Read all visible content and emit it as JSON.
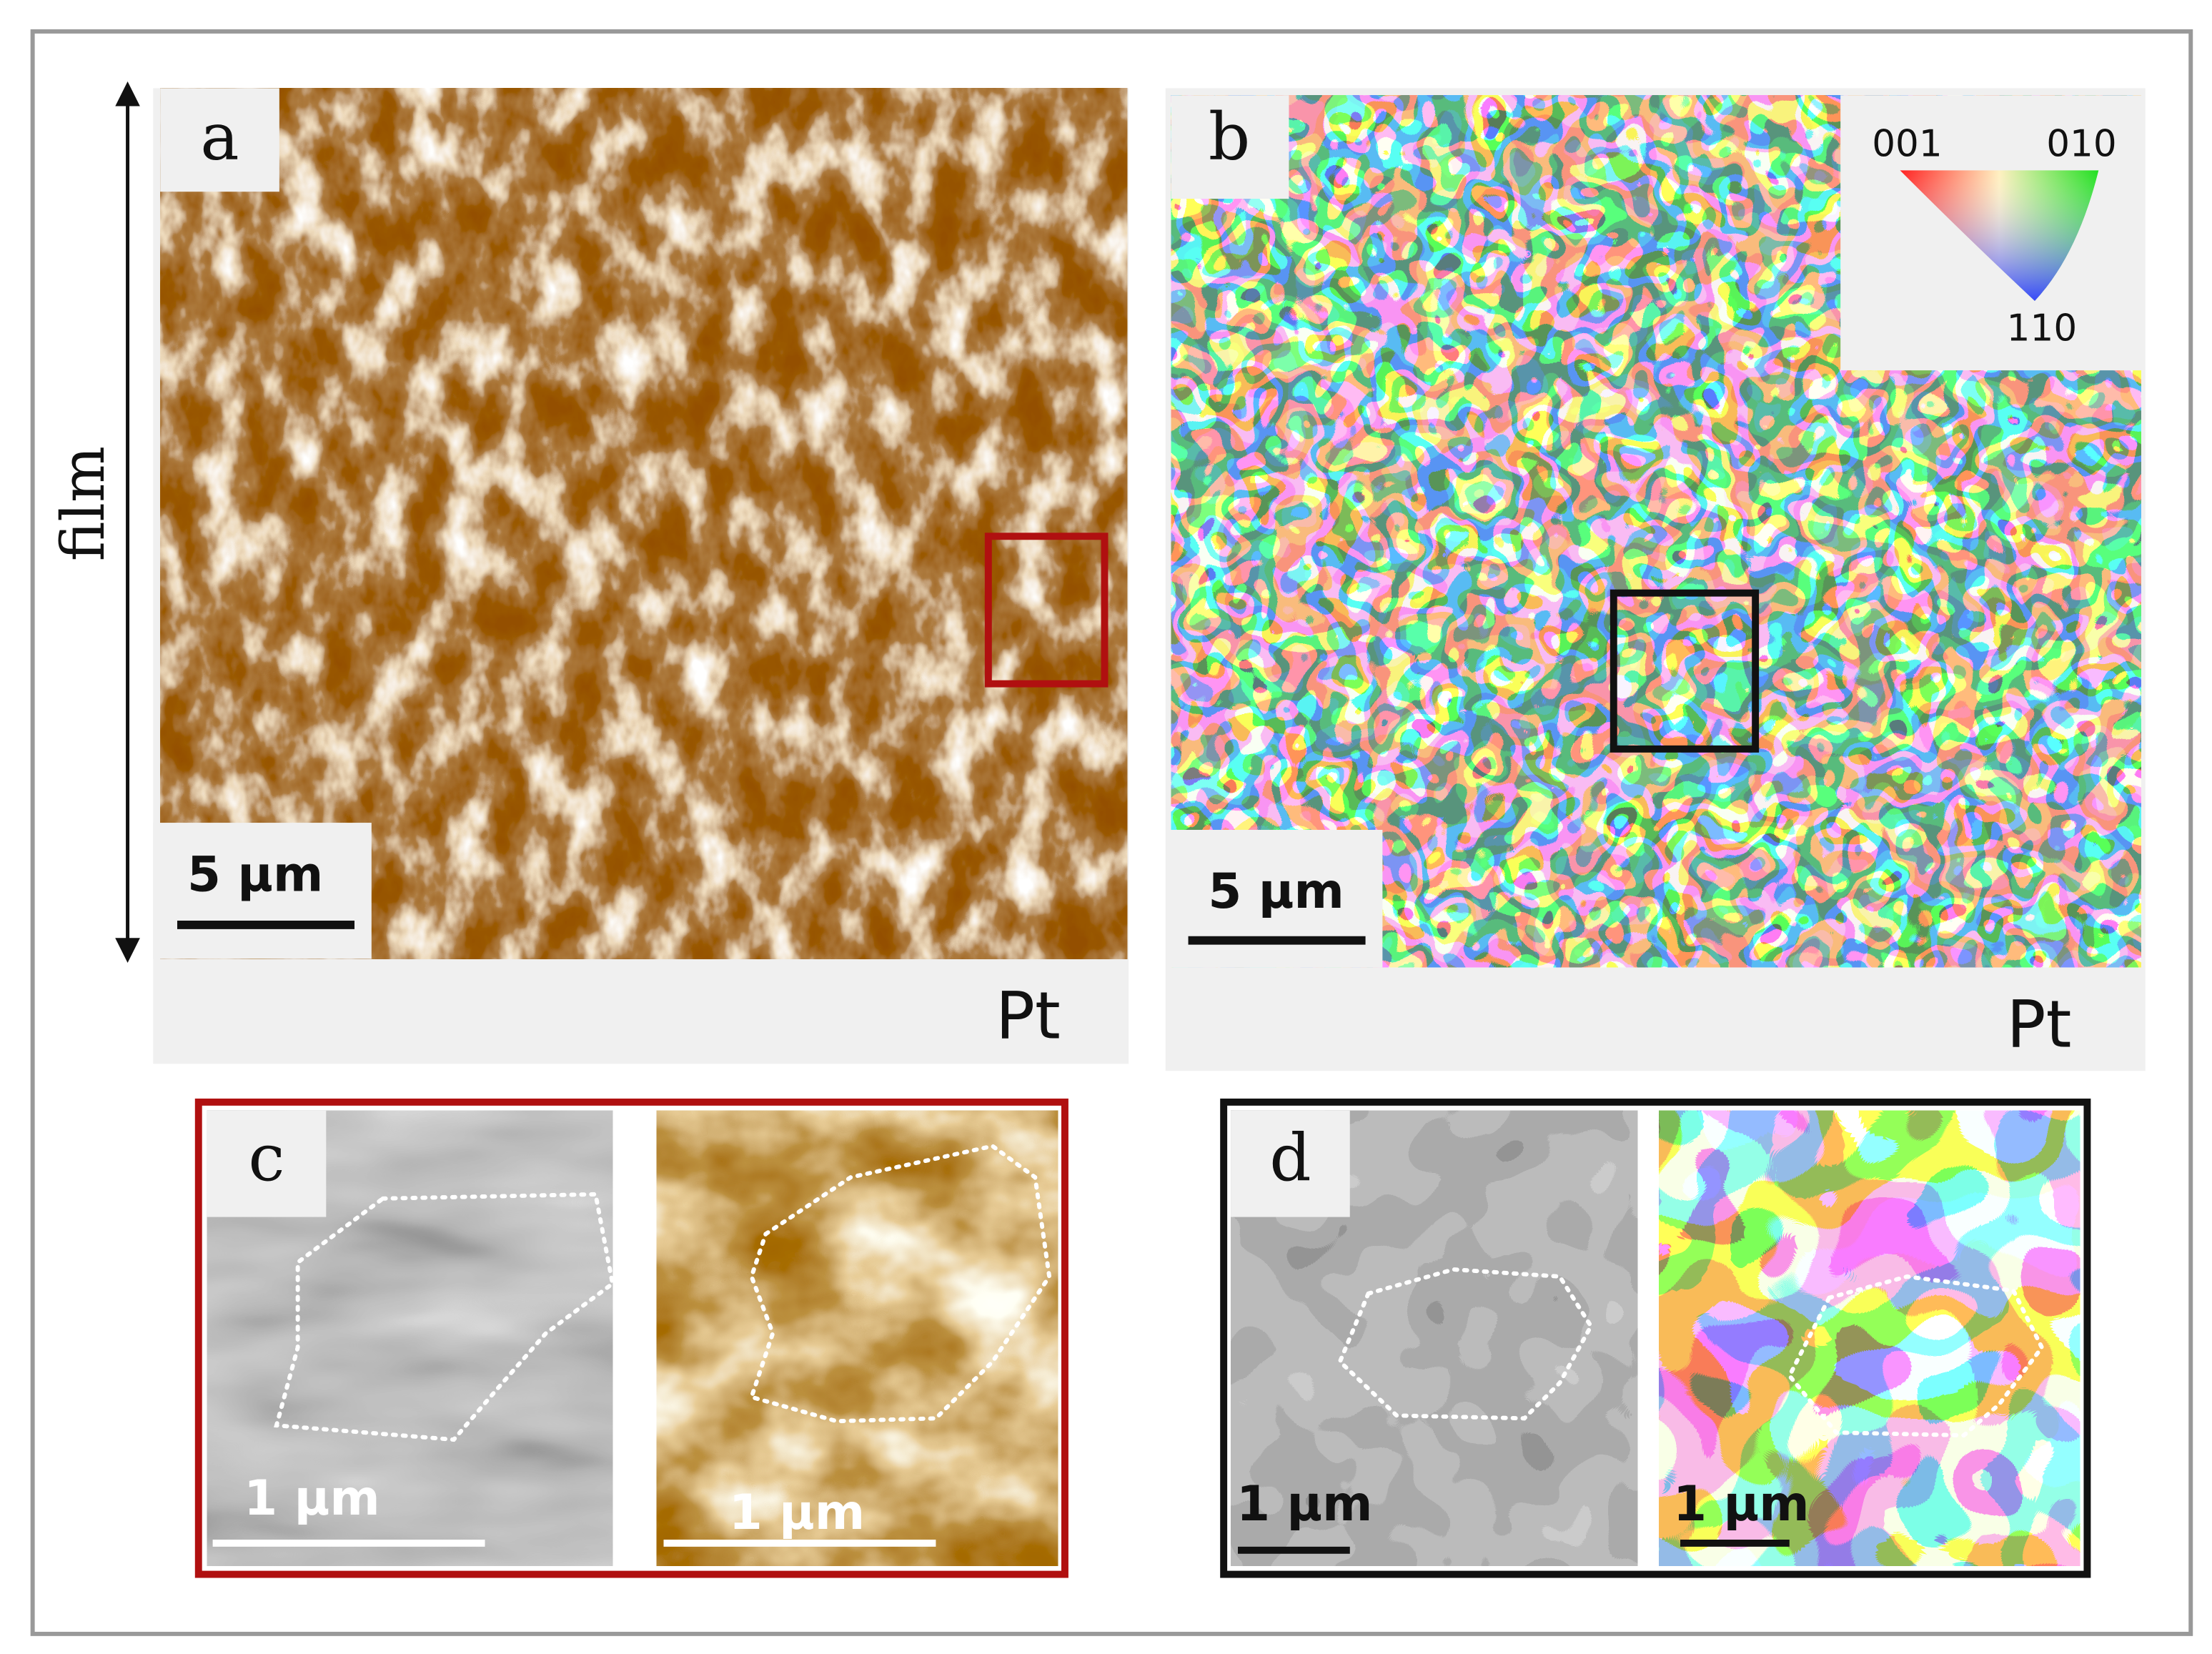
{
  "axis_label": "film",
  "panels": [
    {
      "label": "a",
      "scale_bar": "5 µm",
      "electrode": "Pt"
    },
    {
      "label": "b",
      "scale_bar": "5 µm",
      "electrode": "Pt"
    },
    {
      "label": "c",
      "scale_bars": [
        "1 µm",
        "1 µm"
      ]
    },
    {
      "label": "d",
      "scale_bars": [
        "1 µm",
        "1 µm"
      ]
    }
  ],
  "legend": {
    "corners": [
      "001",
      "010",
      "110"
    ]
  }
}
